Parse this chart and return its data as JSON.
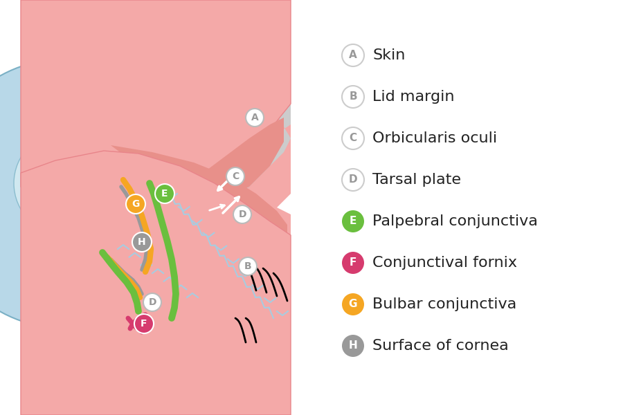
{
  "background_color": "#ffffff",
  "legend_items": [
    {
      "label": "A",
      "text": "Skin",
      "color": "#cccccc",
      "text_color": "#888888",
      "filled": false
    },
    {
      "label": "B",
      "text": "Lid margin",
      "color": "#cccccc",
      "text_color": "#888888",
      "filled": false
    },
    {
      "label": "C",
      "text": "Orbicularis oculi",
      "color": "#cccccc",
      "text_color": "#888888",
      "filled": false
    },
    {
      "label": "D",
      "text": "Tarsal plate",
      "color": "#cccccc",
      "text_color": "#888888",
      "filled": false
    },
    {
      "label": "E",
      "text": "Palpebral conjunctiva",
      "color": "#6abf3e",
      "text_color": "#ffffff",
      "filled": true
    },
    {
      "label": "F",
      "text": "Conjunctival fornix",
      "color": "#d63b6e",
      "text_color": "#ffffff",
      "filled": true
    },
    {
      "label": "G",
      "text": "Bulbar conjunctiva",
      "color": "#f5a623",
      "text_color": "#ffffff",
      "filled": true
    },
    {
      "label": "H",
      "text": "Surface of cornea",
      "color": "#999999",
      "text_color": "#ffffff",
      "filled": true
    }
  ],
  "skin_color": "#f4a9a8",
  "skin_dark": "#e8858a",
  "eye_blue": "#b8d8e8",
  "eye_dark_blue": "#8abcce",
  "gray_tissue": "#b0b0b0",
  "green_conjunctiva": "#6abf3e",
  "orange_conjunctiva": "#f5a623",
  "pink_fornix": "#d63b6e",
  "gray_cornea": "#999999",
  "white_color": "#ffffff"
}
